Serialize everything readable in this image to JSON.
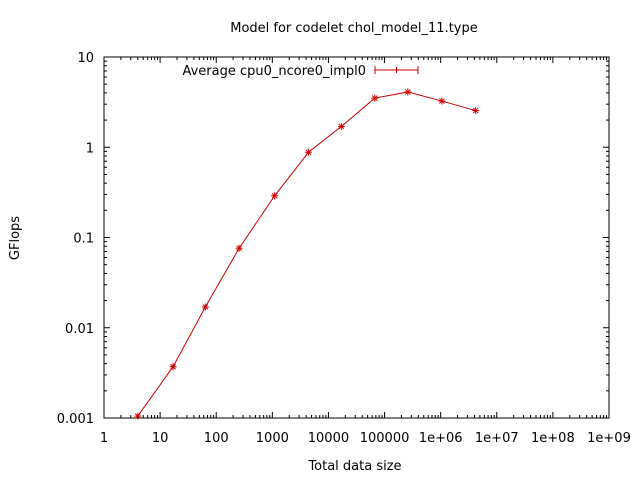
{
  "chart_data": {
    "type": "line",
    "title": "Model for codelet chol_model_11.type",
    "xlabel": "Total data size",
    "ylabel": "GFlops",
    "x_scale": "log",
    "y_scale": "log",
    "xlim": [
      1,
      1000000000
    ],
    "ylim": [
      0.001,
      10
    ],
    "x_ticks": [
      "1",
      "10",
      "100",
      "1000",
      "10000",
      "100000",
      "1e+06",
      "1e+07",
      "1e+08",
      "1e+09"
    ],
    "y_ticks": [
      "0.001",
      "0.01",
      "0.1",
      "1",
      "10"
    ],
    "legend_position": "top-left",
    "grid": false,
    "series": [
      {
        "name": "Average cpu0_ncore0_impl0",
        "color": "#cc0000",
        "x": [
          4,
          17,
          64,
          256,
          1100,
          4400,
          17000,
          67000,
          260000,
          1050000,
          4200000
        ],
        "y": [
          0.00105,
          0.0037,
          0.017,
          0.076,
          0.29,
          0.88,
          1.7,
          3.5,
          4.1,
          3.25,
          2.55
        ]
      }
    ]
  }
}
